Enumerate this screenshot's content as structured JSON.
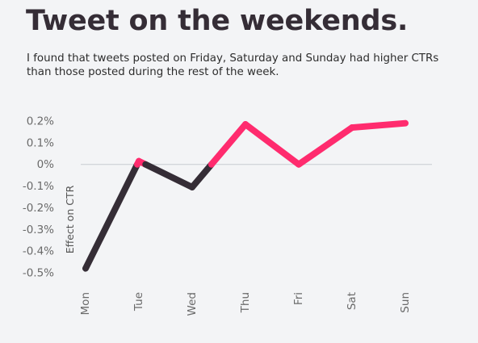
{
  "header": {
    "title": "Tweet on the weekends.",
    "subtitle": "I found that tweets posted on Friday, Saturday and Sunday had higher CTRs than those posted during the rest of the week."
  },
  "colors": {
    "background": "#f3f4f6",
    "title": "#352d36",
    "weekday_line": "#352d36",
    "weekend_line": "#ff2b6e",
    "zero_line": "#c8ccd1",
    "tick_text": "#6a6a6a"
  },
  "chart_data": {
    "type": "line",
    "title": "Tweet on the weekends.",
    "subtitle": "I found that tweets posted on Friday, Saturday and Sunday had higher CTRs than those posted during the rest of the week.",
    "xlabel": "",
    "ylabel": "Effect on CTR",
    "categories": [
      "Mon",
      "Tue",
      "Wed",
      "Thu",
      "Fri",
      "Sat",
      "Sun"
    ],
    "values": [
      -0.48,
      0.015,
      -0.105,
      0.185,
      0.0,
      0.17,
      0.19
    ],
    "y_ticks": [
      "0.2%",
      "0.1%",
      "0%",
      "-0.1%",
      "-0.2%",
      "-0.3%",
      "-0.4%",
      "-0.5%"
    ],
    "y_tick_values": [
      0.2,
      0.1,
      0,
      -0.1,
      -0.2,
      -0.3,
      -0.4,
      -0.5
    ],
    "ylim": [
      -0.5,
      0.2
    ],
    "y_unit": "%",
    "grid": false,
    "zero_line": true,
    "color_rule": "values above 0 drawn in pink, values below 0 drawn in dark"
  }
}
